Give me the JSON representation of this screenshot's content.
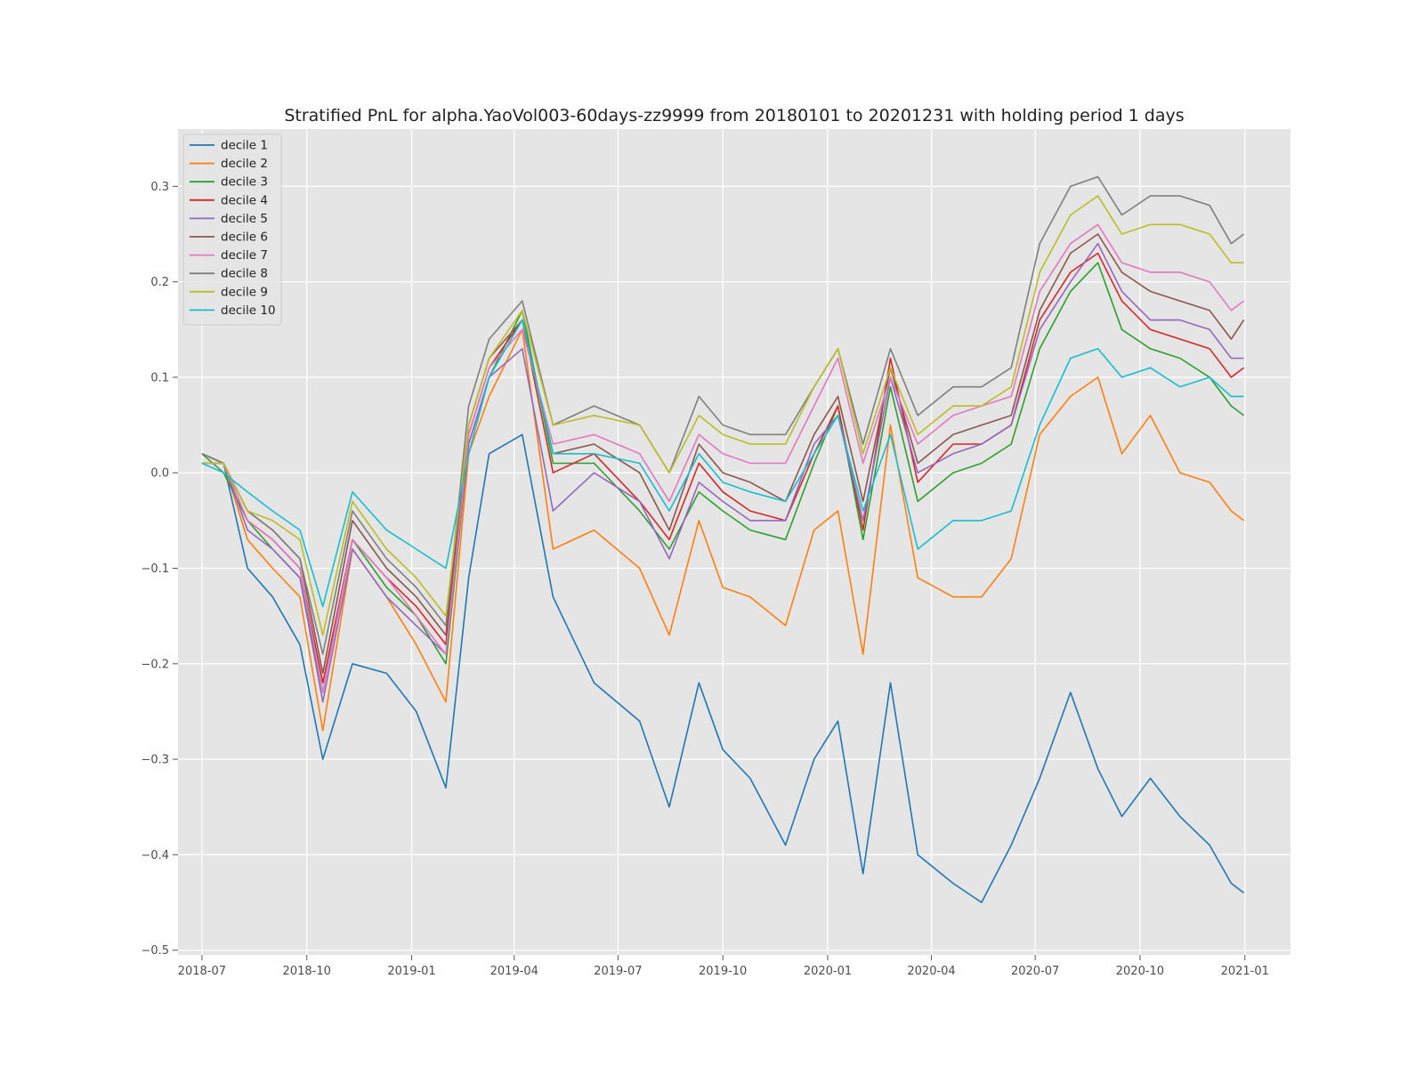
{
  "chart_data": {
    "type": "line",
    "title": "Stratified PnL for alpha.YaoVol003-60days-zz9999 from 20180101 to 20201231 with holding period 1 days",
    "xlabel": "",
    "ylabel": "",
    "grid": true,
    "legend_position": "top-left",
    "xlim": [
      "2018-06-10",
      "2021-02-10"
    ],
    "ylim": [
      -0.505,
      0.36
    ],
    "x_ticks": [
      "2018-07",
      "2018-10",
      "2019-01",
      "2019-04",
      "2019-07",
      "2019-10",
      "2020-01",
      "2020-04",
      "2020-07",
      "2020-10",
      "2021-01"
    ],
    "y_ticks": [
      {
        "value": -0.5,
        "label": "−0.5"
      },
      {
        "value": -0.4,
        "label": "−0.4"
      },
      {
        "value": -0.3,
        "label": "−0.3"
      },
      {
        "value": -0.2,
        "label": "−0.2"
      },
      {
        "value": -0.1,
        "label": "−0.1"
      },
      {
        "value": 0.0,
        "label": "0.0"
      },
      {
        "value": 0.1,
        "label": "0.1"
      },
      {
        "value": 0.2,
        "label": "0.2"
      },
      {
        "value": 0.3,
        "label": "0.3"
      }
    ],
    "x": [
      "2018-07-01",
      "2018-07-20",
      "2018-08-10",
      "2018-09-01",
      "2018-09-25",
      "2018-10-15",
      "2018-11-10",
      "2018-12-10",
      "2019-01-05",
      "2019-01-31",
      "2019-02-20",
      "2019-03-10",
      "2019-04-08",
      "2019-05-05",
      "2019-06-10",
      "2019-07-20",
      "2019-08-15",
      "2019-09-10",
      "2019-10-01",
      "2019-10-25",
      "2019-11-25",
      "2019-12-20",
      "2020-01-10",
      "2020-02-01",
      "2020-02-25",
      "2020-03-20",
      "2020-04-20",
      "2020-05-15",
      "2020-06-10",
      "2020-07-05",
      "2020-08-01",
      "2020-08-25",
      "2020-09-15",
      "2020-10-10",
      "2020-11-05",
      "2020-12-01",
      "2020-12-20",
      "2020-12-31"
    ],
    "series": [
      {
        "name": "decile 1",
        "color": "#1f77b4",
        "values": [
          0.01,
          0.01,
          -0.1,
          -0.13,
          -0.18,
          -0.3,
          -0.2,
          -0.21,
          -0.25,
          -0.33,
          -0.11,
          0.02,
          0.04,
          -0.13,
          -0.22,
          -0.26,
          -0.35,
          -0.22,
          -0.29,
          -0.32,
          -0.39,
          -0.3,
          -0.26,
          -0.42,
          -0.22,
          -0.4,
          -0.43,
          -0.45,
          -0.39,
          -0.32,
          -0.23,
          -0.31,
          -0.36,
          -0.32,
          -0.36,
          -0.39,
          -0.43,
          -0.44
        ]
      },
      {
        "name": "decile 2",
        "color": "#ff7f0e",
        "values": [
          0.02,
          0.01,
          -0.07,
          -0.1,
          -0.13,
          -0.27,
          -0.08,
          -0.13,
          -0.18,
          -0.24,
          0.02,
          0.08,
          0.15,
          -0.08,
          -0.06,
          -0.1,
          -0.17,
          -0.05,
          -0.12,
          -0.13,
          -0.16,
          -0.06,
          -0.04,
          -0.19,
          0.05,
          -0.11,
          -0.13,
          -0.13,
          -0.09,
          0.04,
          0.08,
          0.1,
          0.02,
          0.06,
          0.0,
          -0.01,
          -0.04,
          -0.05
        ]
      },
      {
        "name": "decile 3",
        "color": "#2ca02c",
        "values": [
          0.02,
          0.0,
          -0.05,
          -0.08,
          -0.11,
          -0.23,
          -0.07,
          -0.12,
          -0.15,
          -0.2,
          0.03,
          0.1,
          0.17,
          0.01,
          0.01,
          -0.04,
          -0.08,
          -0.02,
          -0.04,
          -0.06,
          -0.07,
          0.01,
          0.07,
          -0.07,
          0.09,
          -0.03,
          0.0,
          0.01,
          0.03,
          0.13,
          0.19,
          0.22,
          0.15,
          0.13,
          0.12,
          0.1,
          0.07,
          0.06
        ]
      },
      {
        "name": "decile 4",
        "color": "#d62728",
        "values": [
          0.02,
          0.01,
          -0.05,
          -0.07,
          -0.1,
          -0.22,
          -0.07,
          -0.11,
          -0.14,
          -0.18,
          0.04,
          0.11,
          0.16,
          0.0,
          0.02,
          -0.03,
          -0.07,
          0.01,
          -0.02,
          -0.04,
          -0.05,
          0.02,
          0.07,
          -0.06,
          0.12,
          -0.01,
          0.03,
          0.03,
          0.05,
          0.16,
          0.21,
          0.23,
          0.18,
          0.15,
          0.14,
          0.13,
          0.1,
          0.11
        ]
      },
      {
        "name": "decile 5",
        "color": "#9467bd",
        "values": [
          0.01,
          0.01,
          -0.06,
          -0.08,
          -0.11,
          -0.24,
          -0.08,
          -0.13,
          -0.16,
          -0.19,
          0.03,
          0.1,
          0.13,
          -0.04,
          0.0,
          -0.03,
          -0.09,
          -0.01,
          -0.03,
          -0.05,
          -0.05,
          0.03,
          0.06,
          -0.05,
          0.1,
          0.0,
          0.02,
          0.03,
          0.05,
          0.15,
          0.2,
          0.24,
          0.19,
          0.16,
          0.16,
          0.15,
          0.12,
          0.12
        ]
      },
      {
        "name": "decile 6",
        "color": "#8c564b",
        "values": [
          0.02,
          0.01,
          -0.04,
          -0.06,
          -0.09,
          -0.21,
          -0.05,
          -0.1,
          -0.13,
          -0.17,
          0.05,
          0.12,
          0.16,
          0.02,
          0.03,
          0.0,
          -0.06,
          0.03,
          0.0,
          -0.01,
          -0.03,
          0.04,
          0.08,
          -0.03,
          0.11,
          0.01,
          0.04,
          0.05,
          0.06,
          0.17,
          0.23,
          0.25,
          0.21,
          0.19,
          0.18,
          0.17,
          0.14,
          0.16
        ]
      },
      {
        "name": "decile 7",
        "color": "#e377c2",
        "values": [
          0.01,
          0.01,
          -0.05,
          -0.07,
          -0.1,
          -0.23,
          -0.07,
          -0.11,
          -0.15,
          -0.19,
          0.04,
          0.11,
          0.15,
          0.03,
          0.04,
          0.02,
          -0.03,
          0.04,
          0.02,
          0.01,
          0.01,
          0.07,
          0.12,
          0.01,
          0.1,
          0.03,
          0.06,
          0.07,
          0.08,
          0.19,
          0.24,
          0.26,
          0.22,
          0.21,
          0.21,
          0.2,
          0.17,
          0.18
        ]
      },
      {
        "name": "decile 8",
        "color": "#7f7f7f",
        "values": [
          0.02,
          0.01,
          -0.04,
          -0.06,
          -0.09,
          -0.19,
          -0.04,
          -0.09,
          -0.12,
          -0.16,
          0.07,
          0.14,
          0.18,
          0.05,
          0.07,
          0.05,
          0.0,
          0.08,
          0.05,
          0.04,
          0.04,
          0.09,
          0.13,
          0.03,
          0.13,
          0.06,
          0.09,
          0.09,
          0.11,
          0.24,
          0.3,
          0.31,
          0.27,
          0.29,
          0.29,
          0.28,
          0.24,
          0.25
        ]
      },
      {
        "name": "decile 9",
        "color": "#bcbd22",
        "values": [
          0.01,
          0.01,
          -0.04,
          -0.05,
          -0.07,
          -0.17,
          -0.03,
          -0.08,
          -0.11,
          -0.15,
          0.05,
          0.12,
          0.17,
          0.05,
          0.06,
          0.05,
          0.0,
          0.06,
          0.04,
          0.03,
          0.03,
          0.09,
          0.13,
          0.02,
          0.11,
          0.04,
          0.07,
          0.07,
          0.09,
          0.21,
          0.27,
          0.29,
          0.25,
          0.26,
          0.26,
          0.25,
          0.22,
          0.22
        ]
      },
      {
        "name": "decile 10",
        "color": "#17becf",
        "values": [
          0.01,
          0.0,
          -0.02,
          -0.04,
          -0.06,
          -0.14,
          -0.02,
          -0.06,
          -0.08,
          -0.1,
          0.02,
          0.1,
          0.16,
          0.02,
          0.02,
          0.01,
          -0.04,
          0.02,
          -0.01,
          -0.02,
          -0.03,
          0.02,
          0.06,
          -0.04,
          0.04,
          -0.08,
          -0.05,
          -0.05,
          -0.04,
          0.05,
          0.12,
          0.13,
          0.1,
          0.11,
          0.09,
          0.1,
          0.08,
          0.08
        ]
      }
    ]
  }
}
